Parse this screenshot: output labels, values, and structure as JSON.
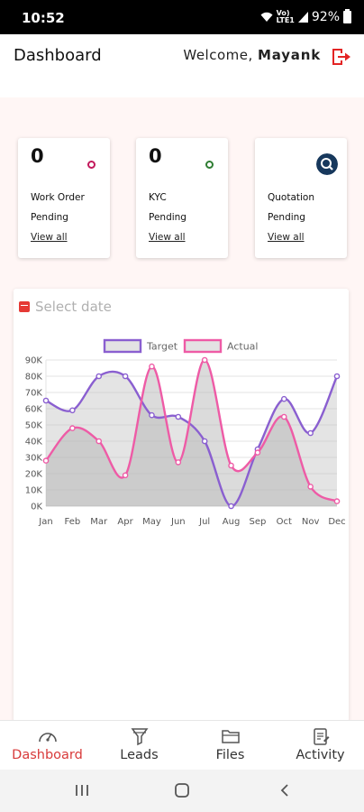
{
  "status": {
    "time": "10:52",
    "net_top": "Vo)",
    "net_bottom": "LTE1",
    "battery": "92%"
  },
  "header": {
    "title": "Dashboard",
    "welcome_prefix": "Welcome,",
    "user_name": "Mayank"
  },
  "cards": [
    {
      "count": "0",
      "line1": "Work Order",
      "line2": "Pending",
      "link": "View all",
      "indicator_color": "#c2185b"
    },
    {
      "count": "0",
      "line1": "KYC",
      "line2": "Pending",
      "link": "View all",
      "indicator_color": "#2e7d32"
    },
    {
      "count": "",
      "line1": "Quotation",
      "line2": "Pending",
      "link": "View all",
      "indicator_color": "#17385c"
    }
  ],
  "date_picker": {
    "placeholder": "Select date"
  },
  "chart_data": {
    "type": "area",
    "categories": [
      "Jan",
      "Feb",
      "Mar",
      "Apr",
      "May",
      "Jun",
      "Jul",
      "Aug",
      "Sep",
      "Oct",
      "Nov",
      "Dec"
    ],
    "series": [
      {
        "name": "Target",
        "color": "#8a5fd0",
        "values": [
          65000,
          59000,
          80000,
          80000,
          56000,
          55000,
          40000,
          0,
          35000,
          66000,
          45000,
          80000
        ]
      },
      {
        "name": "Actual",
        "color": "#ee5ba6",
        "values": [
          28000,
          48000,
          40000,
          19000,
          86000,
          27000,
          90000,
          25000,
          33000,
          55000,
          12000,
          3000
        ]
      }
    ],
    "y_ticks": [
      "0K",
      "10K",
      "20K",
      "30K",
      "40K",
      "50K",
      "60K",
      "70K",
      "80K",
      "90K"
    ],
    "ylim": [
      0,
      90000
    ],
    "grid": true,
    "legend_position": "top"
  },
  "nav": [
    {
      "label": "Dashboard",
      "icon": "gauge-icon",
      "active": true
    },
    {
      "label": "Leads",
      "icon": "funnel-icon",
      "active": false
    },
    {
      "label": "Files",
      "icon": "folder-icon",
      "active": false
    },
    {
      "label": "Activity",
      "icon": "clipboard-icon",
      "active": false
    }
  ],
  "colors": {
    "accent": "#d83a3a",
    "background": "#fff6f5"
  }
}
